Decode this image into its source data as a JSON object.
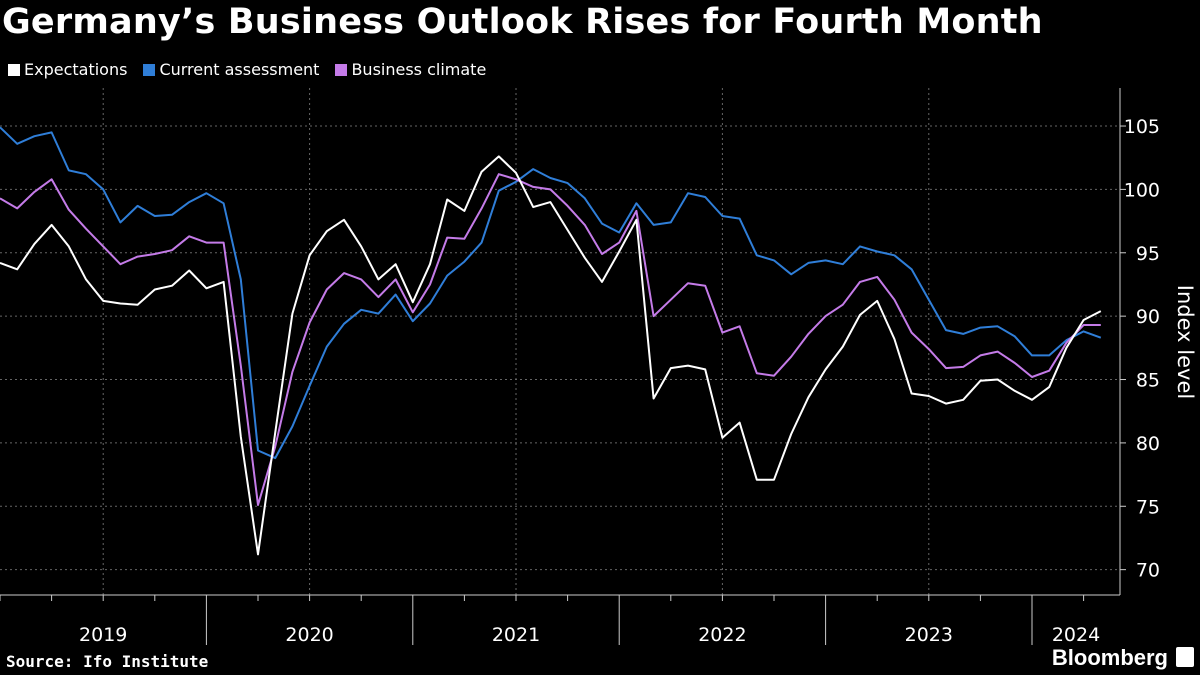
{
  "title": "Germany’s Business Outlook Rises for Fourth Month",
  "source": "Source: Ifo Institute",
  "brand": "Bloomberg",
  "chart_data": {
    "type": "line",
    "title": "Germany’s Business Outlook Rises for Fourth Month",
    "ylabel": "Index level",
    "ylim": [
      68,
      108
    ],
    "yticks": [
      70,
      75,
      80,
      85,
      90,
      95,
      100,
      105
    ],
    "year_labels": [
      "2019",
      "2020",
      "2021",
      "2022",
      "2023",
      "2024"
    ],
    "x_start": "2019-01",
    "grid": true,
    "legend_position": "top-left",
    "series": [
      {
        "name": "Expectations",
        "color": "#ffffff",
        "values": [
          94.2,
          93.7,
          95.7,
          97.2,
          95.5,
          92.9,
          91.2,
          91.0,
          90.9,
          92.1,
          92.4,
          93.6,
          92.2,
          92.7,
          80.5,
          71.2,
          80.8,
          90.2,
          94.8,
          96.7,
          97.6,
          95.5,
          92.9,
          94.1,
          91.1,
          94.1,
          99.2,
          98.3,
          101.4,
          102.6,
          101.3,
          98.6,
          99.0,
          96.8,
          94.6,
          92.7,
          95.1,
          97.6,
          83.5,
          85.9,
          86.1,
          85.8,
          80.4,
          81.6,
          77.1,
          77.1,
          80.7,
          83.6,
          85.8,
          87.6,
          90.1,
          91.2,
          88.2,
          83.9,
          83.7,
          83.1,
          83.4,
          84.9,
          85.0,
          84.1,
          83.4,
          84.4,
          87.5,
          89.7,
          90.4
        ]
      },
      {
        "name": "Current assessment",
        "color": "#2f7ed8",
        "values": [
          104.9,
          103.6,
          104.2,
          104.5,
          101.5,
          101.2,
          100.0,
          97.4,
          98.7,
          97.9,
          98.0,
          99.0,
          99.7,
          98.9,
          92.9,
          79.4,
          78.8,
          81.3,
          84.5,
          87.6,
          89.4,
          90.5,
          90.2,
          91.7,
          89.6,
          91.0,
          93.2,
          94.3,
          95.8,
          99.9,
          100.6,
          101.6,
          100.9,
          100.5,
          99.3,
          97.3,
          96.6,
          98.9,
          97.2,
          97.4,
          99.7,
          99.4,
          97.9,
          97.7,
          94.8,
          94.4,
          93.3,
          94.2,
          94.4,
          94.1,
          95.5,
          95.1,
          94.8,
          93.7,
          91.3,
          88.9,
          88.6,
          89.1,
          89.2,
          88.4,
          86.9,
          86.9,
          88.1,
          88.8,
          88.3
        ]
      },
      {
        "name": "Business climate",
        "color": "#c47be8",
        "values": [
          99.3,
          98.5,
          99.8,
          100.8,
          98.4,
          96.9,
          95.5,
          94.1,
          94.7,
          94.9,
          95.2,
          96.3,
          95.8,
          95.8,
          86.1,
          75.1,
          79.7,
          85.6,
          89.5,
          92.1,
          93.4,
          92.9,
          91.5,
          92.9,
          90.3,
          92.5,
          96.2,
          96.1,
          98.5,
          101.2,
          100.8,
          100.2,
          100.0,
          98.7,
          97.2,
          94.9,
          95.8,
          98.3,
          90.0,
          91.3,
          92.6,
          92.4,
          88.7,
          89.2,
          85.5,
          85.3,
          86.8,
          88.6,
          90.0,
          90.9,
          92.7,
          93.1,
          91.3,
          88.7,
          87.4,
          85.9,
          86.0,
          86.9,
          87.2,
          86.3,
          85.2,
          85.7,
          87.9,
          89.3,
          89.3
        ]
      }
    ]
  }
}
